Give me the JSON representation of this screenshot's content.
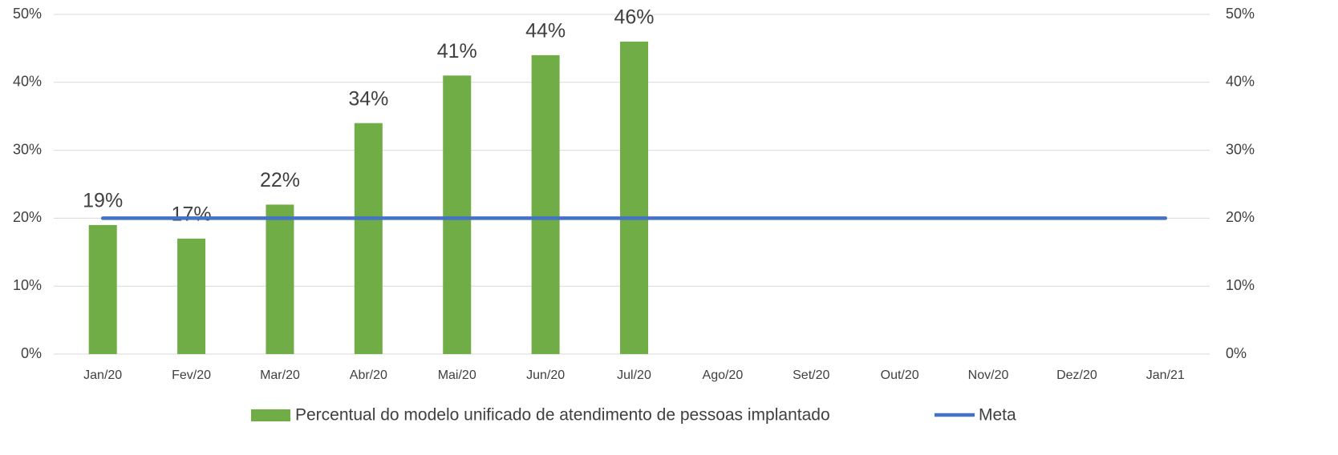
{
  "chart_data": {
    "type": "bar",
    "categories": [
      "Jan/20",
      "Fev/20",
      "Mar/20",
      "Abr/20",
      "Mai/20",
      "Jun/20",
      "Jul/20",
      "Ago/20",
      "Set/20",
      "Out/20",
      "Nov/20",
      "Dez/20",
      "Jan/21"
    ],
    "series": [
      {
        "name": "Percentual do modelo unificado de atendimento de pessoas implantado",
        "type": "bar",
        "color": "#70ad47",
        "values": [
          19,
          17,
          22,
          34,
          41,
          44,
          46,
          null,
          null,
          null,
          null,
          null,
          null
        ],
        "value_labels": [
          "19%",
          "17%",
          "22%",
          "34%",
          "41%",
          "44%",
          "46%",
          null,
          null,
          null,
          null,
          null,
          null
        ]
      },
      {
        "name": "Meta",
        "type": "line",
        "color": "#4472c4",
        "values": [
          20,
          20,
          20,
          20,
          20,
          20,
          20,
          20,
          20,
          20,
          20,
          20,
          20
        ]
      }
    ],
    "ylim": [
      0,
      50
    ],
    "yticks": [
      {
        "value": 0,
        "label": "0%"
      },
      {
        "value": 10,
        "label": "10%"
      },
      {
        "value": 20,
        "label": "20%"
      },
      {
        "value": 30,
        "label": "30%"
      },
      {
        "value": 40,
        "label": "40%"
      },
      {
        "value": 50,
        "label": "50%"
      }
    ],
    "y2lim": [
      0,
      50
    ],
    "y2ticks": [
      {
        "value": 0,
        "label": "0%"
      },
      {
        "value": 10,
        "label": "10%"
      },
      {
        "value": 20,
        "label": "20%"
      },
      {
        "value": 30,
        "label": "30%"
      },
      {
        "value": 40,
        "label": "40%"
      },
      {
        "value": 50,
        "label": "50%"
      }
    ],
    "grid": true,
    "legend": "bottom"
  }
}
